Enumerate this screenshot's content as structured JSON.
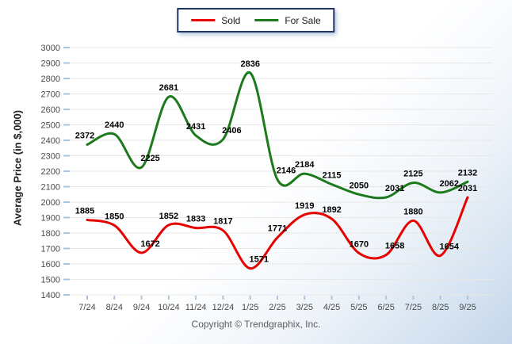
{
  "legend": {
    "items": [
      {
        "label": "Sold",
        "color": "#e60000",
        "icon": "red-line-swatch"
      },
      {
        "label": "For Sale",
        "color": "#1c7a1c",
        "icon": "green-line-swatch"
      }
    ]
  },
  "y_axis_title": "Average Price (in $,000)",
  "footer": {
    "copyright": "Copyright © Trendgraphix, Inc."
  },
  "chart_data": {
    "type": "line",
    "title": "",
    "x": [
      "7/24",
      "8/24",
      "9/24",
      "10/24",
      "11/24",
      "12/24",
      "1/25",
      "2/25",
      "3/25",
      "4/25",
      "5/25",
      "6/25",
      "7/25",
      "8/25",
      "9/25"
    ],
    "series": [
      {
        "name": "Sold",
        "color": "#e60000",
        "values": [
          1885,
          1850,
          1672,
          1852,
          1833,
          1817,
          1571,
          1771,
          1919,
          1892,
          1670,
          1658,
          1880,
          1654,
          2031
        ]
      },
      {
        "name": "For Sale",
        "color": "#1c7a1c",
        "values": [
          2372,
          2440,
          2225,
          2681,
          2431,
          2406,
          2836,
          2146,
          2184,
          2115,
          2050,
          2031,
          2125,
          2062,
          2132
        ]
      }
    ],
    "xlabel": "",
    "ylabel": "Average Price (in $,000)",
    "ylim": [
      1400,
      3000
    ],
    "ytick_step": 100,
    "grid": true,
    "grid_color": "#e7e7e7",
    "tick_color": "#a9c5e2",
    "curve": "smooth",
    "data_labels": true,
    "legend_position": "top-center"
  }
}
